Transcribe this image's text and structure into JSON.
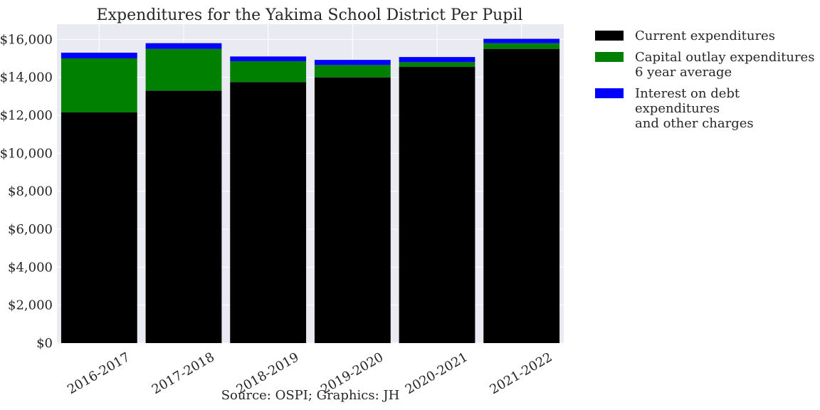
{
  "chart_data": {
    "type": "bar",
    "stacked": true,
    "title": "Expenditures for the Yakima School District Per Pupil",
    "xlabel": "Source: OSPI; Graphics: JH",
    "ylabel": "",
    "categories": [
      "2016-2017",
      "2017-2018",
      "2018-2019",
      "2019-2020",
      "2020-2021",
      "2021-2022"
    ],
    "series": [
      {
        "name": "Current expenditures",
        "color": "#000000",
        "values": [
          12150,
          13300,
          13750,
          14000,
          14550,
          15500
        ]
      },
      {
        "name": "Capital outlay expenditures\n6 year average",
        "color": "#008000",
        "values": [
          2850,
          2200,
          1100,
          650,
          250,
          300
        ]
      },
      {
        "name": "Interest on debt expenditures\nand other charges",
        "color": "#0000ff",
        "values": [
          300,
          300,
          250,
          270,
          270,
          230
        ]
      }
    ],
    "ylim": [
      0,
      16800
    ],
    "yticks": [
      0,
      2000,
      4000,
      6000,
      8000,
      10000,
      12000,
      14000,
      16000
    ],
    "ytick_labels": [
      "$0",
      "$2,000",
      "$4,000",
      "$6,000",
      "$8,000",
      "$10,000",
      "$12,000",
      "$14,000",
      "$16,000"
    ],
    "grid": true,
    "legend_position": "outside-right"
  }
}
